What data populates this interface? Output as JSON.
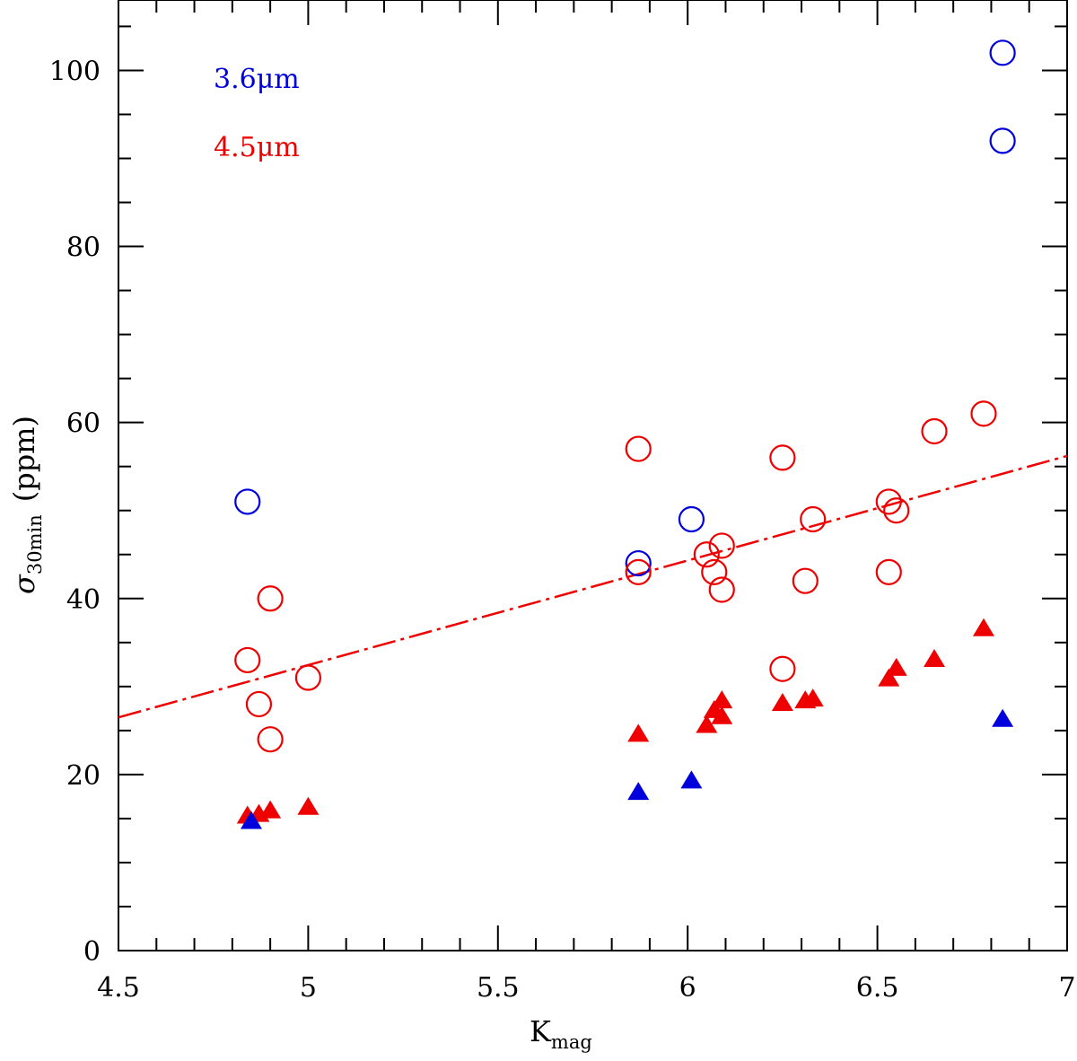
{
  "chart_data": {
    "type": "scatter",
    "title": "",
    "xlabel": "K",
    "xlabel_sub": "mag",
    "ylabel": "σ",
    "ylabel_sub": "30min",
    "ylabel_unit": "(ppm)",
    "xlim": [
      4.5,
      7.0
    ],
    "ylim": [
      0,
      108
    ],
    "x_ticks": [
      4.5,
      5,
      5.5,
      6,
      6.5,
      7
    ],
    "x_tick_labels": [
      "4.5",
      "5",
      "5.5",
      "6",
      "6.5",
      "7"
    ],
    "y_ticks": [
      0,
      20,
      40,
      60,
      80,
      100
    ],
    "y_tick_labels": [
      "0",
      "20",
      "40",
      "60",
      "80",
      "100"
    ],
    "legend": [
      {
        "label": "3.6μm",
        "color": "#0000dd"
      },
      {
        "label": "4.5μm",
        "color": "#ee0000"
      }
    ],
    "series": [
      {
        "name": "3.6μm open circles",
        "color": "#0000dd",
        "marker": "open-circle",
        "points": [
          [
            4.84,
            51
          ],
          [
            5.87,
            44
          ],
          [
            6.01,
            49
          ],
          [
            6.83,
            102
          ],
          [
            6.83,
            92
          ]
        ]
      },
      {
        "name": "4.5μm open circles",
        "color": "#ee0000",
        "marker": "open-circle",
        "points": [
          [
            4.84,
            33
          ],
          [
            4.87,
            28
          ],
          [
            4.9,
            40
          ],
          [
            4.9,
            24
          ],
          [
            5.0,
            31
          ],
          [
            5.87,
            57
          ],
          [
            5.87,
            43
          ],
          [
            6.05,
            45
          ],
          [
            6.07,
            43
          ],
          [
            6.09,
            46
          ],
          [
            6.09,
            41
          ],
          [
            6.25,
            56
          ],
          [
            6.25,
            32
          ],
          [
            6.31,
            42
          ],
          [
            6.33,
            49
          ],
          [
            6.53,
            51
          ],
          [
            6.55,
            50
          ],
          [
            6.53,
            43
          ],
          [
            6.65,
            59
          ],
          [
            6.78,
            61
          ]
        ]
      },
      {
        "name": "4.5μm filled triangles",
        "color": "#ee0000",
        "marker": "filled-triangle",
        "points": [
          [
            4.84,
            15.2
          ],
          [
            4.87,
            15.4
          ],
          [
            4.9,
            15.8
          ],
          [
            5.0,
            16.2
          ],
          [
            5.87,
            24.5
          ],
          [
            6.05,
            25.5
          ],
          [
            6.07,
            27.2
          ],
          [
            6.09,
            26.5
          ],
          [
            6.09,
            28.3
          ],
          [
            6.25,
            28.0
          ],
          [
            6.31,
            28.3
          ],
          [
            6.33,
            28.5
          ],
          [
            6.53,
            30.8
          ],
          [
            6.55,
            32.0
          ],
          [
            6.65,
            33.0
          ],
          [
            6.78,
            36.5
          ]
        ]
      },
      {
        "name": "3.6μm filled triangles",
        "color": "#0000dd",
        "marker": "filled-triangle",
        "points": [
          [
            4.85,
            14.6
          ],
          [
            5.87,
            17.9
          ],
          [
            6.01,
            19.2
          ],
          [
            6.83,
            26.2
          ]
        ]
      }
    ],
    "fit_line": {
      "color": "#ee0000",
      "style": "dashed",
      "points": [
        [
          4.5,
          26.5
        ],
        [
          7.0,
          56.2
        ]
      ]
    }
  }
}
